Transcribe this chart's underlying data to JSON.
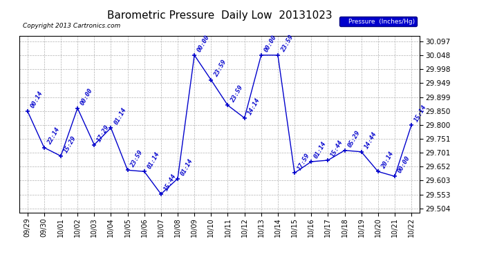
{
  "title": "Barometric Pressure  Daily Low  20131023",
  "copyright": "Copyright 2013 Cartronics.com",
  "legend_label": "Pressure  (Inches/Hg)",
  "x_labels": [
    "09/29",
    "09/30",
    "10/01",
    "10/02",
    "10/03",
    "10/04",
    "10/05",
    "10/06",
    "10/07",
    "10/08",
    "10/09",
    "10/10",
    "10/11",
    "10/12",
    "10/13",
    "10/14",
    "10/15",
    "10/16",
    "10/17",
    "10/18",
    "10/19",
    "10/20",
    "10/21",
    "10/22"
  ],
  "y_values": [
    29.85,
    29.72,
    29.69,
    29.86,
    29.73,
    29.79,
    29.64,
    29.635,
    29.555,
    29.61,
    30.048,
    29.96,
    29.87,
    29.825,
    30.048,
    30.048,
    29.63,
    29.67,
    29.675,
    29.71,
    29.705,
    29.635,
    29.618,
    29.8
  ],
  "point_labels": [
    "00:14",
    "22:14",
    "15:29",
    "00:00",
    "17:29",
    "01:14",
    "23:59",
    "01:14",
    "15:44",
    "01:14",
    "00:00",
    "23:59",
    "23:59",
    "14:14",
    "00:00",
    "23:59",
    "17:59",
    "01:14",
    "15:44",
    "05:29",
    "14:44",
    "20:14",
    "00:00",
    "15:14"
  ],
  "line_color": "#0000CC",
  "marker_color": "#0000CC",
  "label_color": "#0000CC",
  "background_color": "#ffffff",
  "grid_color": "#b0b0b0",
  "yticks": [
    29.504,
    29.553,
    29.603,
    29.652,
    29.701,
    29.751,
    29.8,
    29.85,
    29.899,
    29.949,
    29.998,
    30.048,
    30.097
  ],
  "ylim": [
    29.49,
    30.115
  ],
  "title_fontsize": 11,
  "label_fontsize": 6.5,
  "xtick_fontsize": 7,
  "ytick_fontsize": 7.5
}
